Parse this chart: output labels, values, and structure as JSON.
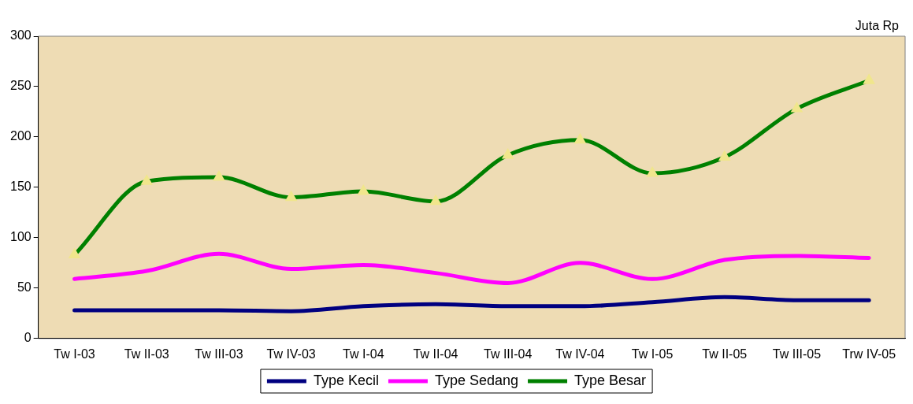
{
  "chart_data": {
    "type": "line",
    "ylabel": "Juta Rp",
    "categories": [
      "Tw I-03",
      "Tw II-03",
      "Tw III-03",
      "Tw IV-03",
      "Tw I-04",
      "Tw II-04",
      "Tw III-04",
      "Tw IV-04",
      "Tw I-05",
      "Tw II-05",
      "Tw III-05",
      "Trw IV-05"
    ],
    "series": [
      {
        "name": "Type Kecil",
        "color": "#000080",
        "values": [
          28,
          28,
          28,
          27,
          32,
          34,
          32,
          32,
          36,
          41,
          38,
          38
        ]
      },
      {
        "name": "Type Sedang",
        "color": "#ff00ff",
        "values": [
          59,
          67,
          84,
          69,
          73,
          65,
          55,
          75,
          59,
          78,
          82,
          80
        ]
      },
      {
        "name": "Type Besar",
        "color": "#008000",
        "marker": "triangle",
        "values": [
          83,
          156,
          160,
          140,
          146,
          136,
          182,
          197,
          164,
          180,
          228,
          256
        ]
      }
    ],
    "ylim": [
      0,
      300
    ],
    "yticks": [
      0,
      50,
      100,
      150,
      200,
      250,
      300
    ],
    "grid": false,
    "legend": "bottom",
    "line_style": "solid"
  }
}
